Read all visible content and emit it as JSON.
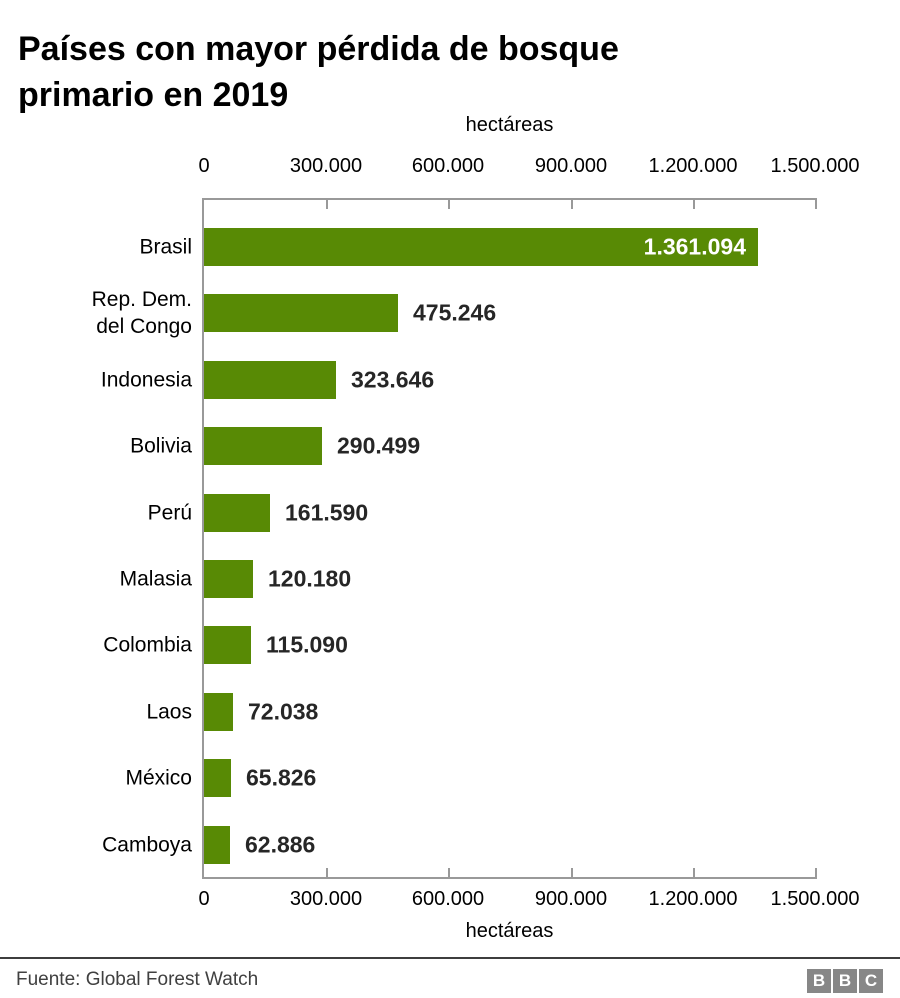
{
  "title": "Países con mayor pérdida de bosque primario en 2019",
  "axis": {
    "unit_top": "hectáreas",
    "unit_bottom": "hectáreas"
  },
  "chart_data": {
    "type": "bar",
    "orientation": "horizontal",
    "title": "Países con mayor pérdida de bosque primario en 2019",
    "xlabel": "hectáreas",
    "xlim": [
      0,
      1500000
    ],
    "grid": false,
    "legend": "none",
    "categories": [
      "Brasil",
      "Rep. Dem. del Congo",
      "Indonesia",
      "Bolivia",
      "Perú",
      "Malasia",
      "Colombia",
      "Laos",
      "México",
      "Camboya"
    ],
    "values": [
      1361094,
      475246,
      323646,
      290499,
      161590,
      120180,
      115090,
      72038,
      65826,
      62886
    ],
    "value_labels": [
      "1.361.094",
      "475.246",
      "323.646",
      "290.499",
      "161.590",
      "120.180",
      "115.090",
      "72.038",
      "65.826",
      "62.886"
    ],
    "x_tick_labels": [
      "0",
      "300.000",
      "600.000",
      "900.000",
      "1.200.000",
      "1.500.000"
    ],
    "x_tick_values": [
      0,
      300000,
      600000,
      900000,
      1200000,
      1500000
    ],
    "bar_color": "#588a05"
  },
  "footer": {
    "source": "Fuente: Global Forest Watch",
    "logo_letters": [
      "B",
      "B",
      "C"
    ]
  },
  "colors": {
    "bar": "#588a05",
    "axis": "#999999",
    "value_text": "#262626",
    "value_text_inside": "#ffffff",
    "title_text": "#000000",
    "footer_text": "#404040",
    "logo_bg": "#878787"
  }
}
